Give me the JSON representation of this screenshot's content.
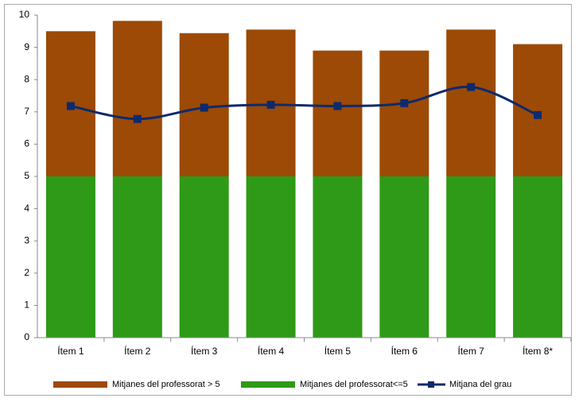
{
  "chart_data": {
    "type": "bar",
    "categories": [
      "Ítem 1",
      "Ítem 2",
      "Ítem 3",
      "Ítem 4",
      "Ítem 5",
      "Ítem 6",
      "Ítem 7",
      "Ítem 8*"
    ],
    "series": [
      {
        "name": "Mitjanes del professorat > 5",
        "color": "#9c4a06",
        "type": "bar",
        "values": [
          4.5,
          4.82,
          4.44,
          4.55,
          3.9,
          3.9,
          4.55,
          4.1
        ]
      },
      {
        "name": "Mitjanes del professorat<=5",
        "color": "#2e9a17",
        "type": "bar",
        "values": [
          5,
          5,
          5,
          5,
          5,
          5,
          5,
          5
        ]
      },
      {
        "name": "Mitjana del grau",
        "color": "#0e2a6e",
        "type": "line",
        "values": [
          7.18,
          6.78,
          7.13,
          7.22,
          7.18,
          7.27,
          7.77,
          6.9
        ]
      }
    ],
    "stacked": true,
    "ylim": [
      0,
      10
    ],
    "yticks": [
      0,
      1,
      2,
      3,
      4,
      5,
      6,
      7,
      8,
      9,
      10
    ],
    "grid": false,
    "legend": "bottom"
  }
}
